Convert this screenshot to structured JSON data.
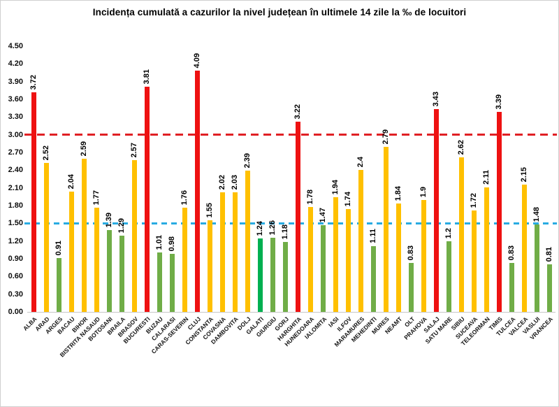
{
  "chart_data": {
    "type": "bar",
    "title": "Incidența cumulată a cazurilor la nivel județean în ultimele 14 zile la ‰ de locuitori",
    "xlabel": "",
    "ylabel": "",
    "ylim": [
      0,
      4.5
    ],
    "ytick_step": 0.3,
    "yticks": [
      "0.00",
      "0.30",
      "0.60",
      "0.90",
      "1.20",
      "1.50",
      "1.80",
      "2.10",
      "2.40",
      "2.70",
      "3.00",
      "3.30",
      "3.60",
      "3.90",
      "4.20",
      "4.50"
    ],
    "grid": false,
    "legend": "none",
    "bar_colors": {
      "red": "#ee1111",
      "yellow": "#ffc000",
      "green": "#70ad47",
      "emerald": "#00b050"
    },
    "reference_lines": [
      {
        "name": "red-threshold",
        "value": 3.0,
        "style": "dashed",
        "color": "#e02024"
      },
      {
        "name": "blue-threshold",
        "value": 1.5,
        "style": "dashed",
        "color": "#29abe2"
      }
    ],
    "categories": [
      "ALBA",
      "ARAD",
      "ARGES",
      "BACAU",
      "BIHOR",
      "BISTRITA NASAUD",
      "BOTOSANI",
      "BRAILA",
      "BRASOV",
      "BUCURESTI",
      "BUZAU",
      "CALARASI",
      "CARAS-SEVERIN",
      "CLUJ",
      "CONSTANTA",
      "COVASNA",
      "DAMBOVITA",
      "DOLJ",
      "GALATI",
      "GIURGIU",
      "GORJ",
      "HARGHITA",
      "HUNEDOARA",
      "IALOMITA",
      "IASI",
      "ILFOV",
      "MARAMURES",
      "MEHEDINTI",
      "MURES",
      "NEAMT",
      "OLT",
      "PRAHOVA",
      "SALAJ",
      "SATU MARE",
      "SIBIU",
      "SUCEAVA",
      "TELEORMAN",
      "TIMIS",
      "TULCEA",
      "VALCEA",
      "VASLUI",
      "VRANCEA"
    ],
    "values": [
      3.72,
      2.52,
      0.91,
      2.04,
      2.59,
      1.77,
      1.39,
      1.29,
      2.57,
      3.81,
      1.01,
      0.98,
      1.76,
      4.09,
      1.55,
      2.02,
      2.03,
      2.39,
      1.24,
      1.26,
      1.18,
      3.22,
      1.78,
      1.47,
      1.94,
      1.74,
      2.4,
      1.11,
      2.79,
      1.84,
      0.83,
      1.9,
      3.43,
      1.2,
      2.62,
      1.72,
      2.11,
      3.39,
      0.83,
      2.15,
      1.48,
      0.81
    ],
    "value_labels": [
      "3.72",
      "2.52",
      "0.91",
      "2.04",
      "2.59",
      "1.77",
      "1.39",
      "1.29",
      "2.57",
      "3.81",
      "1.01",
      "0.98",
      "1.76",
      "4.09",
      "1.55",
      "2.02",
      "2.03",
      "2.39",
      "1.24",
      "1.26",
      "1.18",
      "3.22",
      "1.78",
      "1.47",
      "1.94",
      "1.74",
      "2.4",
      "1.11",
      "2.79",
      "1.84",
      "0.83",
      "1.9",
      "3.43",
      "1.2",
      "2.62",
      "1.72",
      "2.11",
      "3.39",
      "0.83",
      "2.15",
      "1.48",
      "0.81"
    ],
    "bar_color_keys": [
      "red",
      "yellow",
      "green",
      "yellow",
      "yellow",
      "yellow",
      "green",
      "green",
      "yellow",
      "red",
      "green",
      "green",
      "yellow",
      "red",
      "yellow",
      "yellow",
      "yellow",
      "yellow",
      "emerald",
      "green",
      "green",
      "red",
      "yellow",
      "green",
      "yellow",
      "yellow",
      "yellow",
      "green",
      "yellow",
      "yellow",
      "green",
      "yellow",
      "red",
      "green",
      "yellow",
      "yellow",
      "yellow",
      "red",
      "green",
      "yellow",
      "green",
      "green"
    ]
  }
}
